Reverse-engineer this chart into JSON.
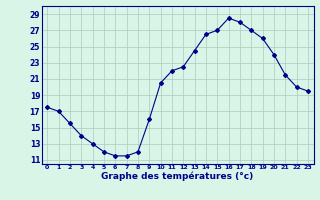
{
  "hours": [
    0,
    1,
    2,
    3,
    4,
    5,
    6,
    7,
    8,
    9,
    10,
    11,
    12,
    13,
    14,
    15,
    16,
    17,
    18,
    19,
    20,
    21,
    22,
    23
  ],
  "temps": [
    17.5,
    17.0,
    15.5,
    14.0,
    13.0,
    12.0,
    11.5,
    11.5,
    12.0,
    16.0,
    20.5,
    22.0,
    22.5,
    24.5,
    26.5,
    27.0,
    28.5,
    28.0,
    27.0,
    26.0,
    24.0,
    21.5,
    20.0,
    19.5
  ],
  "line_color": "#00008B",
  "marker": "D",
  "marker_size": 2,
  "bg_color": "#D8F5E8",
  "grid_color": "#AACCBB",
  "xlabel": "Graphe des températures (°c)",
  "xlabel_color": "#00008B",
  "tick_color": "#00008B",
  "yticks": [
    11,
    13,
    15,
    17,
    19,
    21,
    23,
    25,
    27,
    29
  ],
  "xticks": [
    0,
    1,
    2,
    3,
    4,
    5,
    6,
    7,
    8,
    9,
    10,
    11,
    12,
    13,
    14,
    15,
    16,
    17,
    18,
    19,
    20,
    21,
    22,
    23
  ],
  "ylim": [
    10.5,
    30.0
  ],
  "xlim": [
    -0.5,
    23.5
  ]
}
